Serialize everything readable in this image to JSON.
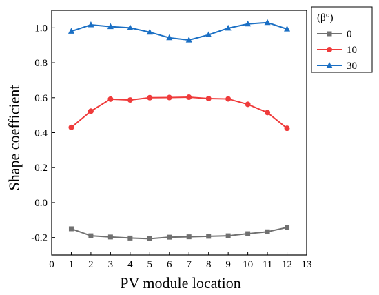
{
  "chart_data": {
    "type": "line",
    "x": [
      1,
      2,
      3,
      4,
      5,
      6,
      7,
      8,
      9,
      10,
      11,
      12
    ],
    "xlabel": "PV module location",
    "ylabel": "Shape coefficient",
    "xlim": [
      0,
      13
    ],
    "ylim": [
      -0.3,
      1.1
    ],
    "xticks": [
      0,
      1,
      2,
      3,
      4,
      5,
      6,
      7,
      8,
      9,
      10,
      11,
      12,
      13
    ],
    "yticks": [
      -0.2,
      0.0,
      0.2,
      0.4,
      0.6,
      0.8,
      1.0
    ],
    "ytick_labels": [
      "-0.2",
      "0.0",
      "0.2",
      "0.4",
      "0.6",
      "0.8",
      "1.0"
    ],
    "grid": false,
    "legend": {
      "title": "(β°)",
      "placement": "outside-top-right"
    },
    "series": [
      {
        "name": "0",
        "color": "#707070",
        "marker": "square",
        "values": [
          -0.15,
          -0.19,
          -0.197,
          -0.203,
          -0.207,
          -0.198,
          -0.196,
          -0.193,
          -0.19,
          -0.178,
          -0.167,
          -0.142
        ]
      },
      {
        "name": "10",
        "color": "#ef3b3b",
        "marker": "circle",
        "values": [
          0.43,
          0.523,
          0.592,
          0.587,
          0.6,
          0.601,
          0.603,
          0.595,
          0.593,
          0.562,
          0.515,
          0.425
        ]
      },
      {
        "name": "30",
        "color": "#1a6fc4",
        "marker": "triangle",
        "values": [
          0.98,
          1.017,
          1.007,
          1.0,
          0.975,
          0.943,
          0.93,
          0.96,
          0.998,
          1.022,
          1.03,
          0.993
        ]
      }
    ]
  }
}
